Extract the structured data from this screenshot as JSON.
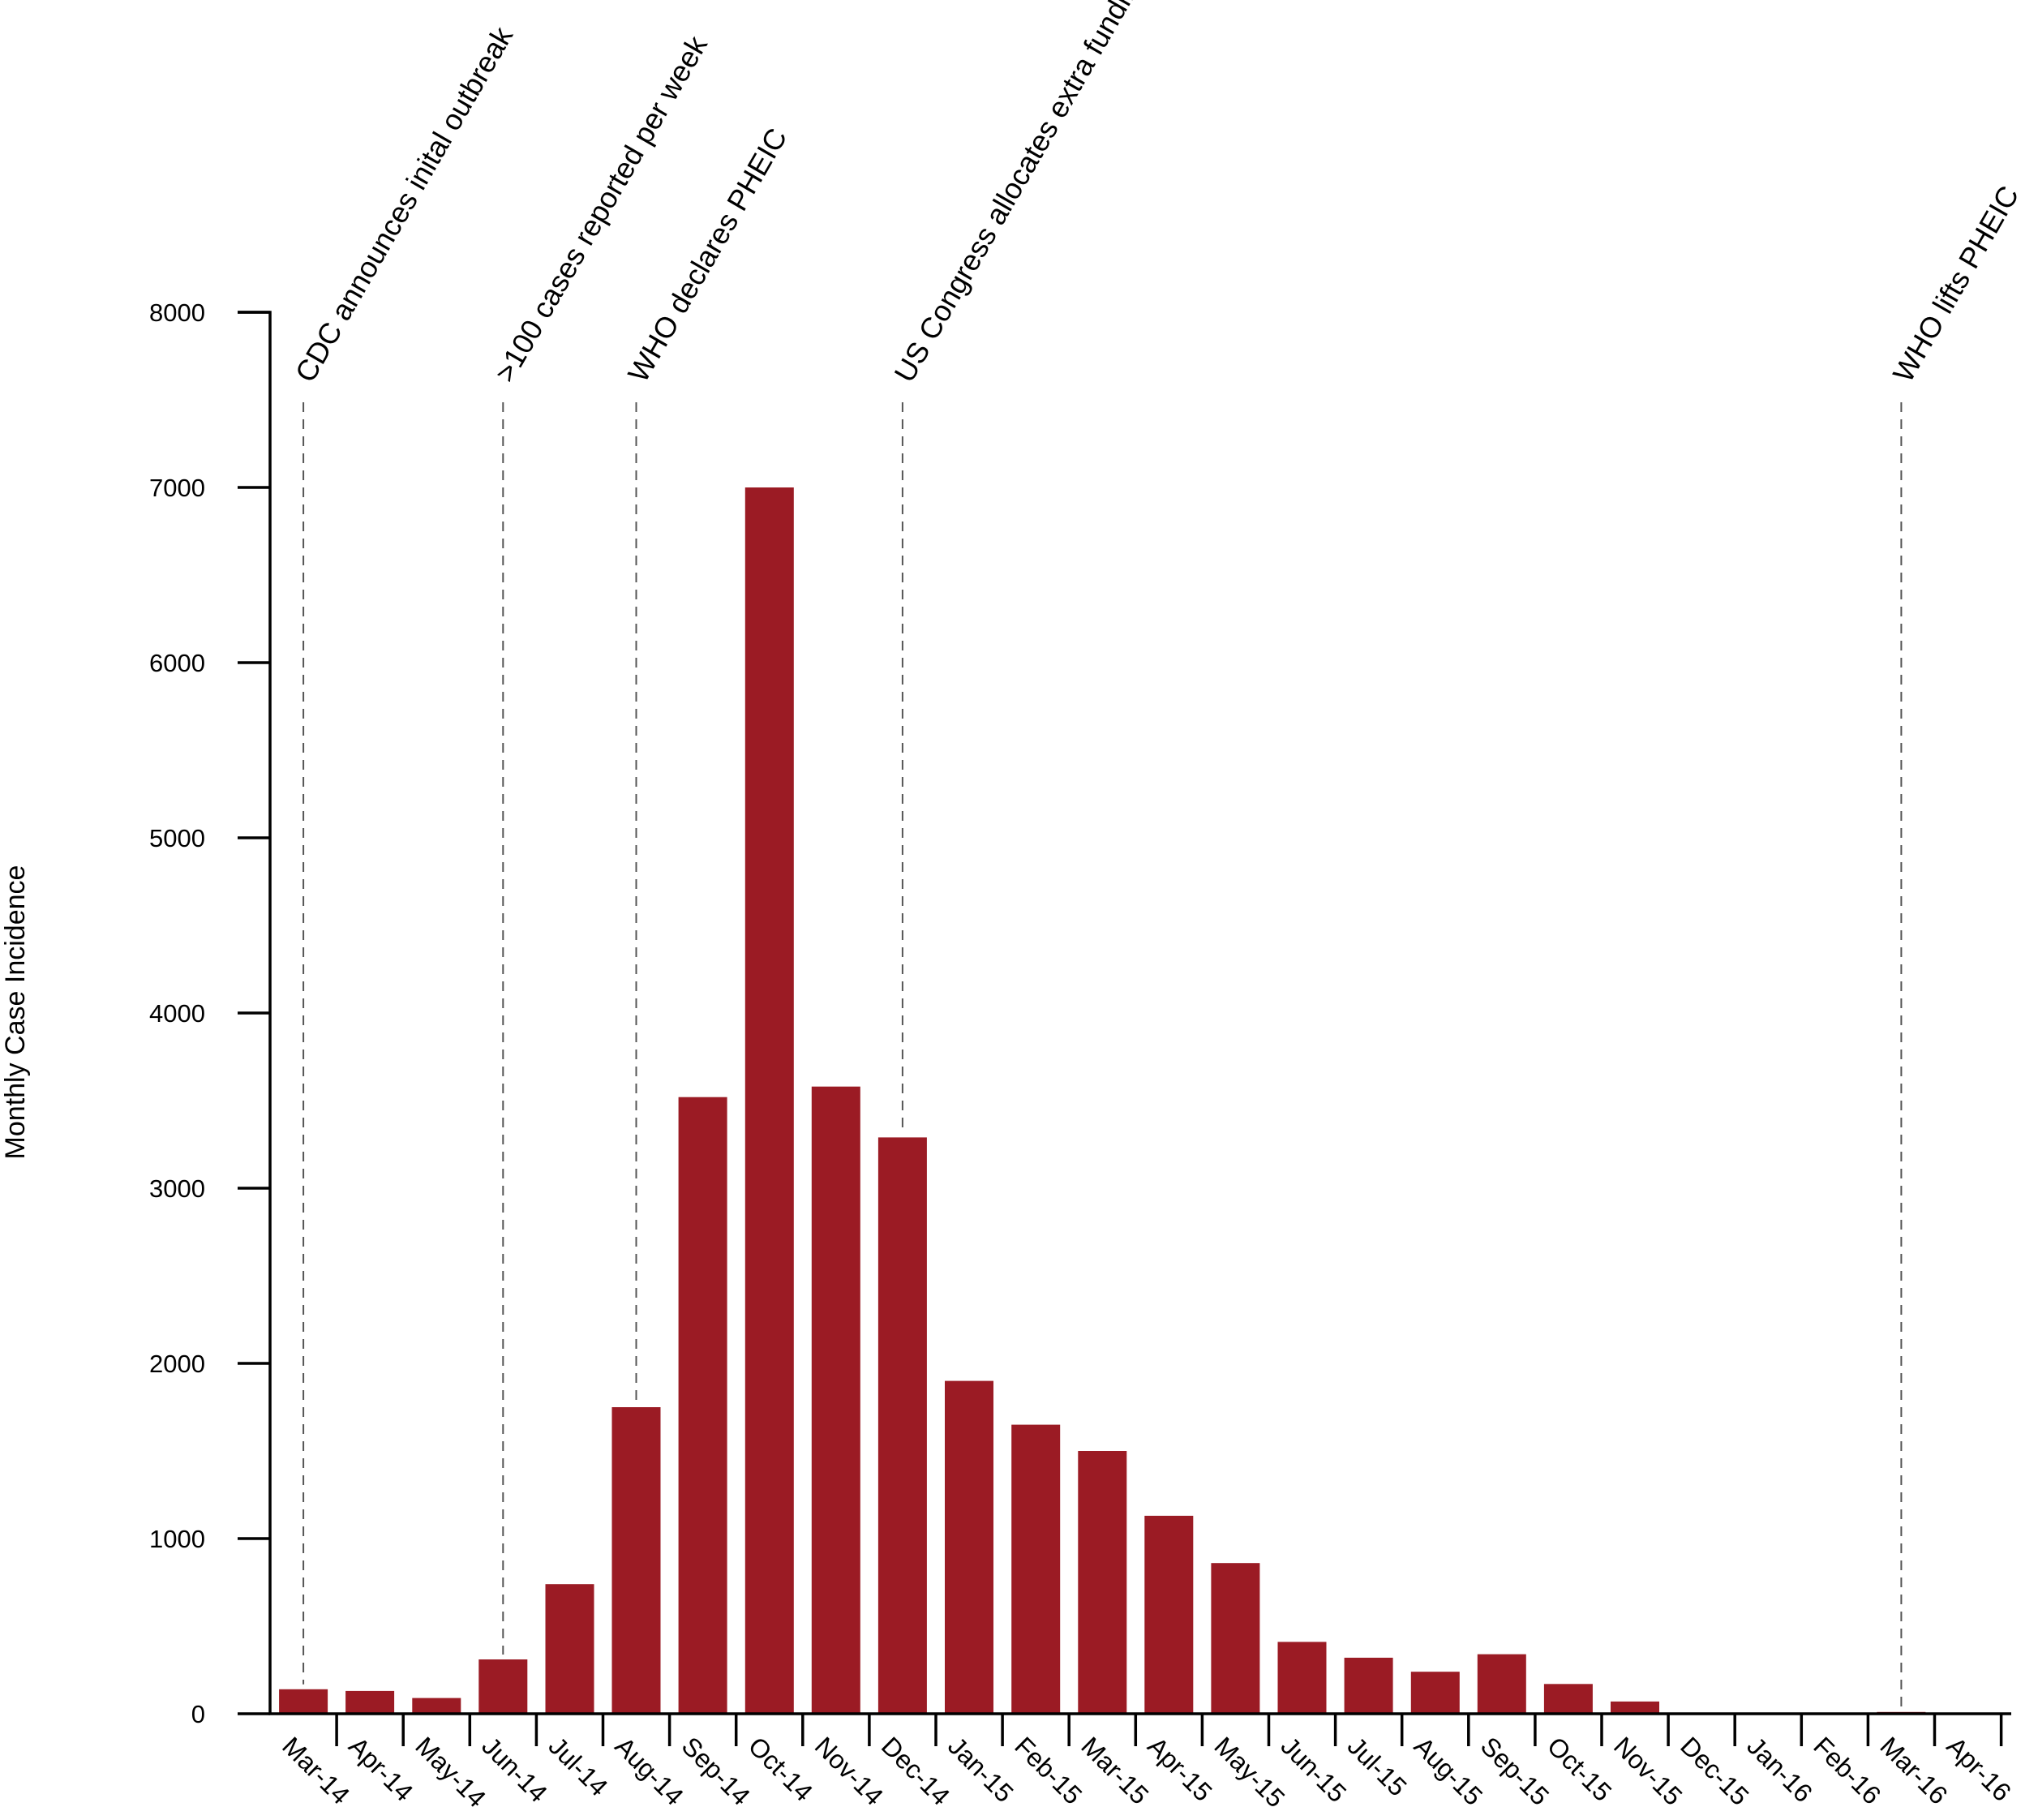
{
  "chart_data": {
    "type": "bar",
    "title": "",
    "xlabel": "",
    "ylabel": "Monthly Case Incidence",
    "ylim": [
      0,
      8000
    ],
    "yticks": [
      0,
      1000,
      2000,
      3000,
      4000,
      5000,
      6000,
      7000,
      8000
    ],
    "grid": false,
    "legend": "none",
    "bar_color": "#9b1b24",
    "categories": [
      "Mar-14",
      "Apr-14",
      "May-14",
      "Jun-14",
      "Jul-14",
      "Aug-14",
      "Sep-14",
      "Oct-14",
      "Nov-14",
      "Dec-14",
      "Jan-15",
      "Feb-15",
      "Mar-15",
      "Apr-15",
      "May-15",
      "Jun-15",
      "Jul-15",
      "Aug-15",
      "Sep-15",
      "Oct-15",
      "Nov-15",
      "Dec-15",
      "Jan-16",
      "Feb-16",
      "Mar-16",
      "Apr-16"
    ],
    "values": [
      140,
      130,
      90,
      310,
      740,
      1750,
      3520,
      7000,
      3580,
      3290,
      1900,
      1650,
      1500,
      1130,
      860,
      410,
      320,
      240,
      340,
      170,
      70,
      5,
      5,
      5,
      10,
      5
    ],
    "annotations": [
      {
        "label": "CDC announces inital outbreak",
        "category": "Mar-14"
      },
      {
        "label": ">100 cases reported per week",
        "category": "Jun-14"
      },
      {
        "label": "WHO declares PHEIC",
        "category": "Aug-14"
      },
      {
        "label": "US Congress allocates extra funding",
        "category": "Dec-14"
      },
      {
        "label": "WHO lifts PHEIC",
        "category": "Mar-16"
      }
    ]
  }
}
